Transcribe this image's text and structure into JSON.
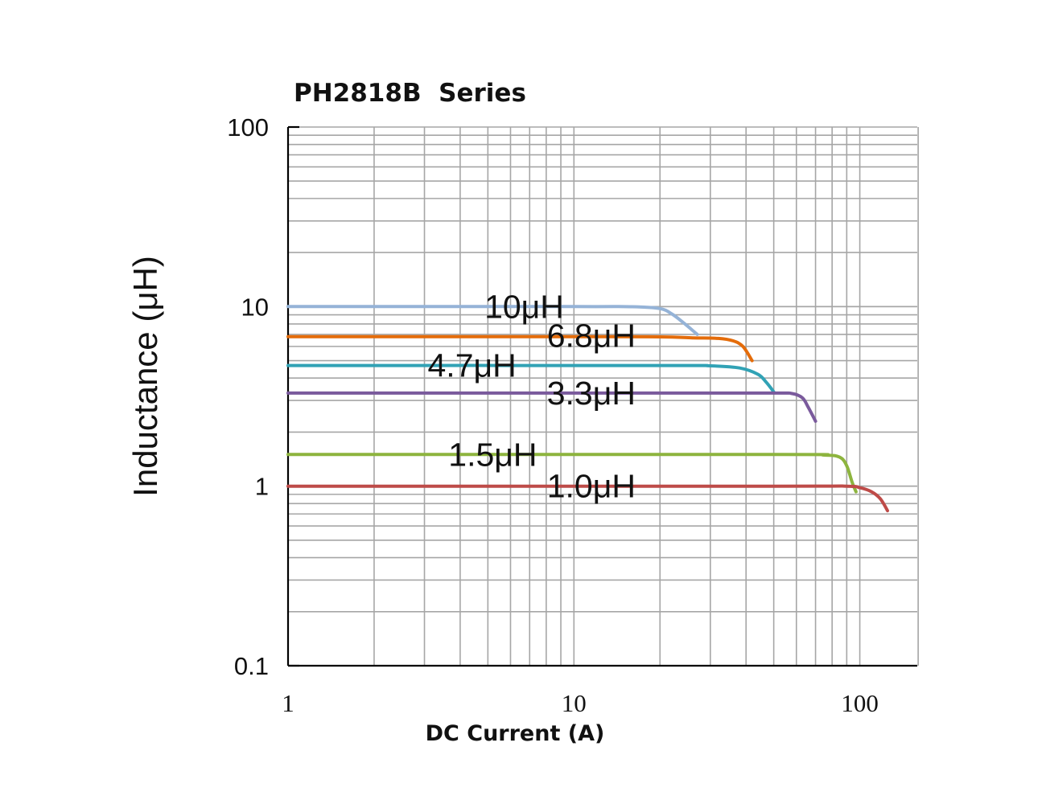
{
  "chart_data": {
    "type": "line",
    "title": "PH2818B  Series",
    "xlabel": "DC Current (A)",
    "ylabel": "Inductance (μH)",
    "x_scale": "log",
    "y_scale": "log",
    "xlim": [
      1,
      160
    ],
    "ylim": [
      0.1,
      100
    ],
    "x_ticks": [
      1,
      10,
      100
    ],
    "x_tick_labels": [
      "1",
      "10",
      "100"
    ],
    "y_ticks": [
      0.1,
      1,
      10,
      100
    ],
    "y_tick_labels": [
      "0.1",
      "1",
      "10",
      "100"
    ],
    "grid": true,
    "series": [
      {
        "name": "10μH",
        "label": "10μH",
        "color": "#95b3d7",
        "label_at": [
          6.7,
          10
        ],
        "points": [
          [
            1,
            10
          ],
          [
            10,
            10
          ],
          [
            16,
            9.98
          ],
          [
            20,
            9.75
          ],
          [
            22,
            9.1
          ],
          [
            24,
            8.2
          ],
          [
            27,
            7
          ]
        ]
      },
      {
        "name": "6.8μH",
        "label": "6.8μH",
        "color": "#e46c0a",
        "label_at": [
          11.5,
          6.9
        ],
        "points": [
          [
            1,
            6.8
          ],
          [
            10,
            6.8
          ],
          [
            20,
            6.78
          ],
          [
            26,
            6.7
          ],
          [
            32,
            6.65
          ],
          [
            36,
            6.45
          ],
          [
            39,
            6.0
          ],
          [
            42,
            5.0
          ]
        ]
      },
      {
        "name": "4.7μH",
        "label": "4.7μH",
        "color": "#31a2b5",
        "label_at": [
          4.4,
          4.7
        ],
        "points": [
          [
            1,
            4.7
          ],
          [
            20,
            4.7
          ],
          [
            30,
            4.68
          ],
          [
            38,
            4.55
          ],
          [
            44,
            4.2
          ],
          [
            47,
            3.8
          ],
          [
            50,
            3.35
          ]
        ]
      },
      {
        "name": "3.3μH",
        "label": "3.3μH",
        "color": "#7a5a9c",
        "label_at": [
          11.5,
          3.3
        ],
        "points": [
          [
            1,
            3.3
          ],
          [
            20,
            3.3
          ],
          [
            50,
            3.3
          ],
          [
            58,
            3.28
          ],
          [
            63,
            3.1
          ],
          [
            66,
            2.75
          ],
          [
            70,
            2.3
          ]
        ]
      },
      {
        "name": "1.5μH",
        "label": "1.5μH",
        "color": "#8db43e",
        "label_at": [
          5.2,
          1.5
        ],
        "points": [
          [
            1,
            1.5
          ],
          [
            50,
            1.5
          ],
          [
            75,
            1.49
          ],
          [
            85,
            1.45
          ],
          [
            90,
            1.3
          ],
          [
            94,
            1.05
          ],
          [
            97,
            0.93
          ]
        ]
      },
      {
        "name": "1.0μH",
        "label": "1.0μH",
        "color": "#be4b48",
        "label_at": [
          11.5,
          1.0
        ],
        "points": [
          [
            1,
            1.0
          ],
          [
            50,
            1.0
          ],
          [
            90,
            1.0
          ],
          [
            100,
            0.98
          ],
          [
            110,
            0.93
          ],
          [
            118,
            0.85
          ],
          [
            125,
            0.73
          ]
        ]
      }
    ]
  }
}
